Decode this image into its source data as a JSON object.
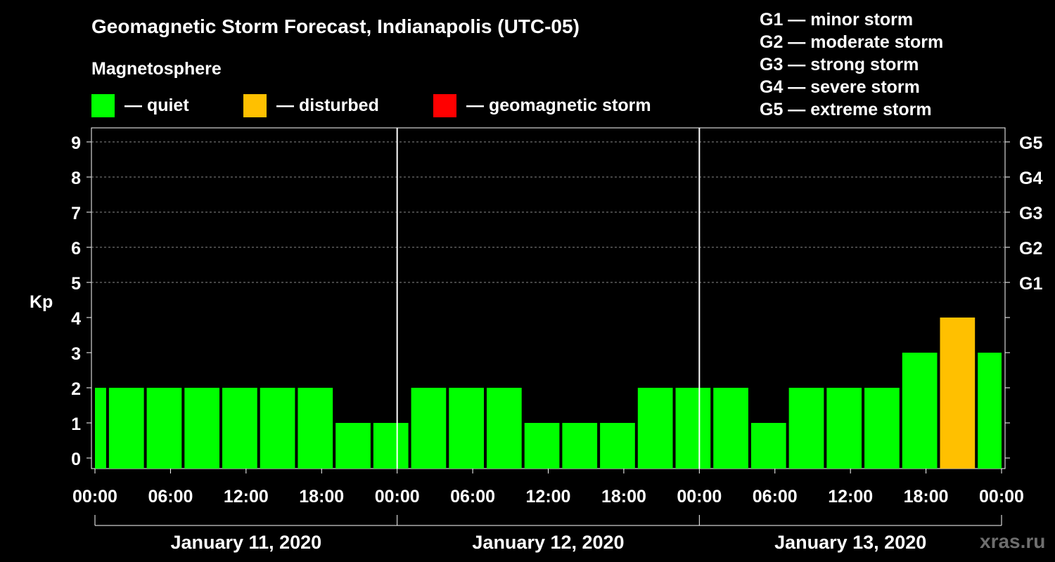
{
  "title": "Geomagnetic Storm Forecast, Indianapolis (UTC-05)",
  "subtitle": "Magnetosphere",
  "legend": [
    {
      "label": "— quiet",
      "color": "#00ff00"
    },
    {
      "label": "— disturbed",
      "color": "#ffc000"
    },
    {
      "label": "— geomagnetic storm",
      "color": "#ff0000"
    }
  ],
  "storm_scale": [
    {
      "level": "G1",
      "text": "G1 — minor storm",
      "kp": 5
    },
    {
      "level": "G2",
      "text": "G2 — moderate storm",
      "kp": 6
    },
    {
      "level": "G3",
      "text": "G3 — strong storm",
      "kp": 7
    },
    {
      "level": "G4",
      "text": "G4 — severe storm",
      "kp": 8
    },
    {
      "level": "G5",
      "text": "G5 — extreme storm",
      "kp": 9
    }
  ],
  "watermark": "xras.ru",
  "chart_data": {
    "type": "bar",
    "title": "Geomagnetic Storm Forecast, Indianapolis (UTC-05)",
    "ylabel": "Kp",
    "xlabel": "",
    "ylim": [
      0,
      9
    ],
    "x_range_hours": [
      0,
      72
    ],
    "yticks": [
      0,
      1,
      2,
      3,
      4,
      5,
      6,
      7,
      8,
      9
    ],
    "right_axis_labels": [
      "G1",
      "G2",
      "G3",
      "G4",
      "G5"
    ],
    "xtick_labels": [
      "00:00",
      "06:00",
      "12:00",
      "18:00",
      "00:00",
      "06:00",
      "12:00",
      "18:00",
      "00:00",
      "06:00",
      "12:00",
      "18:00",
      "00:00"
    ],
    "days": [
      "January 11, 2020",
      "January 12, 2020",
      "January 13, 2020"
    ],
    "bar_step_hours": 3,
    "first_bar_start_hours": -2,
    "values": [
      2,
      2,
      2,
      2,
      2,
      2,
      2,
      1,
      1,
      2,
      2,
      2,
      1,
      1,
      1,
      2,
      2,
      2,
      1,
      2,
      2,
      2,
      3,
      4,
      3
    ],
    "status": [
      "quiet",
      "quiet",
      "quiet",
      "quiet",
      "quiet",
      "quiet",
      "quiet",
      "quiet",
      "quiet",
      "quiet",
      "quiet",
      "quiet",
      "quiet",
      "quiet",
      "quiet",
      "quiet",
      "quiet",
      "quiet",
      "quiet",
      "quiet",
      "quiet",
      "quiet",
      "quiet",
      "disturbed",
      "quiet"
    ],
    "status_colors": {
      "quiet": "#00ff00",
      "disturbed": "#ffc000",
      "storm": "#ff0000"
    },
    "grid": true
  }
}
